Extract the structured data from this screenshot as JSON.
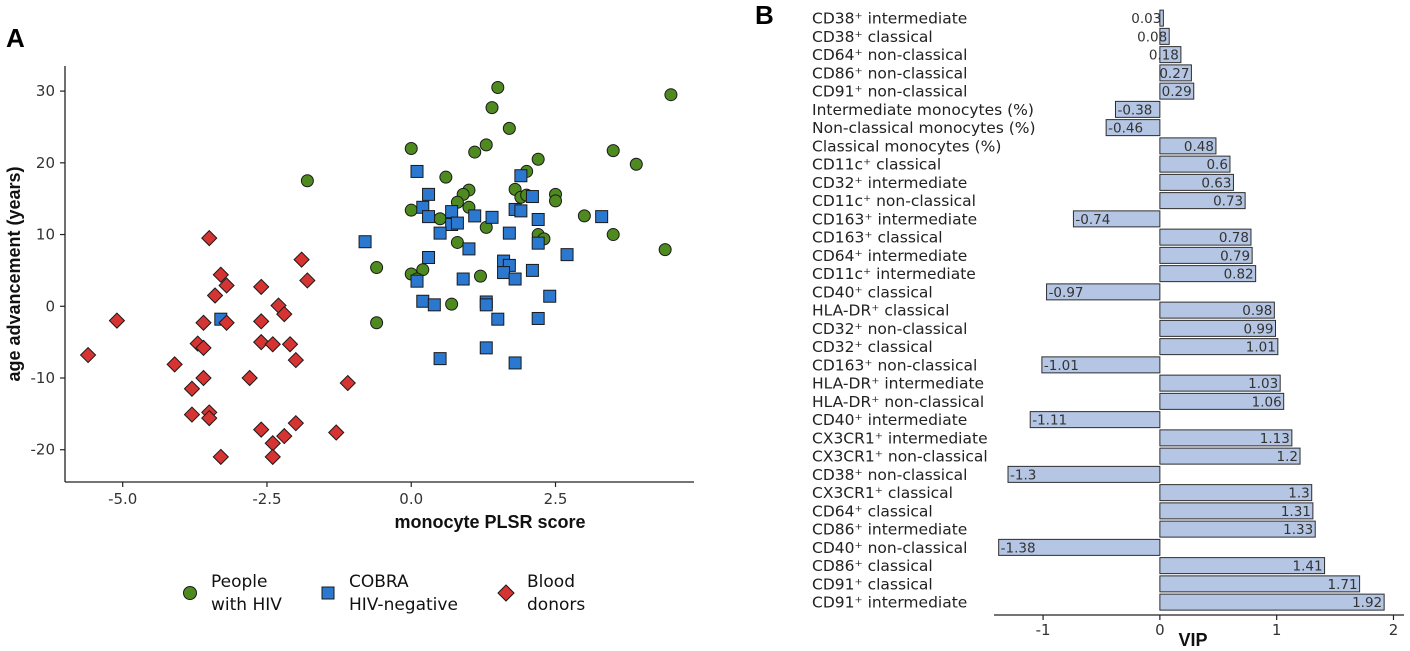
{
  "colors": {
    "hiv": "#4e8a1f",
    "cobra": "#2a78cf",
    "donor": "#d63333",
    "bar": "#b4c6e4"
  },
  "panel_labels": {
    "a": "A",
    "b": "B"
  },
  "legend": {
    "hiv_line1": "People",
    "hiv_line2": "with HIV",
    "cobra_line1": "COBRA",
    "cobra_line2": "HIV-negative",
    "donor_line1": "Blood",
    "donor_line2": "donors"
  },
  "chart_data": [
    {
      "type": "scatter",
      "xlabel": "monocyte PLSR score",
      "ylabel": "age advancement (years)",
      "xlim": [
        -6.0,
        4.9
      ],
      "ylim": [
        -24.5,
        33.5
      ],
      "xticks": [
        -5.0,
        -2.5,
        0.0,
        2.5
      ],
      "xtick_labels": [
        "-5.0",
        "-2.5",
        "0.0",
        "2.5"
      ],
      "yticks": [
        -20,
        -10,
        0,
        10,
        20,
        30
      ],
      "ytick_labels": [
        "-20",
        "-10",
        "0",
        "10",
        "20",
        "30"
      ],
      "series": [
        {
          "name": "People with HIV",
          "marker": "circle",
          "points": [
            [
              1.5,
              30.5
            ],
            [
              4.5,
              29.5
            ],
            [
              1.4,
              27.7
            ],
            [
              1.7,
              24.8
            ],
            [
              0.0,
              22
            ],
            [
              1.3,
              22.5
            ],
            [
              3.5,
              21.7
            ],
            [
              1.1,
              21.5
            ],
            [
              2.2,
              20.5
            ],
            [
              3.9,
              19.8
            ],
            [
              0.6,
              18
            ],
            [
              2.0,
              18.8
            ],
            [
              -1.8,
              17.5
            ],
            [
              1.8,
              16.3
            ],
            [
              1.0,
              16.2
            ],
            [
              0.9,
              15.6
            ],
            [
              1.9,
              15.2
            ],
            [
              2.0,
              15.5
            ],
            [
              0.8,
              14.5
            ],
            [
              2.5,
              15.6
            ],
            [
              2.5,
              14.7
            ],
            [
              1.0,
              13.8
            ],
            [
              0.0,
              13.4
            ],
            [
              3.0,
              12.6
            ],
            [
              0.5,
              12.2
            ],
            [
              1.3,
              11.0
            ],
            [
              2.2,
              10.0
            ],
            [
              2.3,
              9.4
            ],
            [
              0.8,
              8.9
            ],
            [
              3.5,
              10.0
            ],
            [
              4.4,
              7.9
            ],
            [
              -0.6,
              5.4
            ],
            [
              0.2,
              5.1
            ],
            [
              0.0,
              4.5
            ],
            [
              1.2,
              4.2
            ],
            [
              0.1,
              3.8
            ],
            [
              0.7,
              0.3
            ],
            [
              -0.6,
              -2.3
            ]
          ]
        },
        {
          "name": "COBRA HIV-negative",
          "marker": "square",
          "points": [
            [
              0.1,
              18.8
            ],
            [
              1.9,
              18.2
            ],
            [
              0.3,
              15.6
            ],
            [
              2.1,
              15.3
            ],
            [
              0.2,
              13.8
            ],
            [
              0.7,
              13.2
            ],
            [
              1.8,
              13.5
            ],
            [
              1.9,
              13.3
            ],
            [
              0.3,
              12.5
            ],
            [
              1.1,
              12.6
            ],
            [
              1.4,
              12.4
            ],
            [
              2.2,
              12.1
            ],
            [
              3.3,
              12.5
            ],
            [
              0.7,
              11.4
            ],
            [
              0.8,
              11.6
            ],
            [
              0.5,
              10.2
            ],
            [
              1.7,
              10.2
            ],
            [
              -0.8,
              9.0
            ],
            [
              2.2,
              8.8
            ],
            [
              1.0,
              8.0
            ],
            [
              0.3,
              6.8
            ],
            [
              2.7,
              7.2
            ],
            [
              1.6,
              6.3
            ],
            [
              1.7,
              5.7
            ],
            [
              1.6,
              4.7
            ],
            [
              2.1,
              5.0
            ],
            [
              0.1,
              3.5
            ],
            [
              0.9,
              3.8
            ],
            [
              1.8,
              3.8
            ],
            [
              2.4,
              1.4
            ],
            [
              0.2,
              0.7
            ],
            [
              1.3,
              0.6
            ],
            [
              1.3,
              0.2
            ],
            [
              0.4,
              0.2
            ],
            [
              1.5,
              -1.8
            ],
            [
              2.2,
              -1.7
            ],
            [
              -3.3,
              -1.8
            ],
            [
              1.3,
              -5.8
            ],
            [
              0.5,
              -7.3
            ],
            [
              1.8,
              -7.9
            ]
          ]
        },
        {
          "name": "Blood donors",
          "marker": "diamond",
          "points": [
            [
              -3.5,
              9.5
            ],
            [
              -1.9,
              6.5
            ],
            [
              -3.3,
              4.4
            ],
            [
              -3.2,
              2.9
            ],
            [
              -1.8,
              3.6
            ],
            [
              -2.6,
              2.7
            ],
            [
              -3.4,
              1.5
            ],
            [
              -2.3,
              0.1
            ],
            [
              -2.2,
              -1.1
            ],
            [
              -5.1,
              -2.0
            ],
            [
              -3.6,
              -2.3
            ],
            [
              -2.6,
              -2.1
            ],
            [
              -3.2,
              -2.3
            ],
            [
              -3.7,
              -5.2
            ],
            [
              -3.6,
              -5.8
            ],
            [
              -2.6,
              -5.0
            ],
            [
              -2.4,
              -5.3
            ],
            [
              -2.1,
              -5.3
            ],
            [
              -5.6,
              -6.8
            ],
            [
              -2.0,
              -7.5
            ],
            [
              -4.1,
              -8.1
            ],
            [
              -3.6,
              -10.0
            ],
            [
              -2.8,
              -10.0
            ],
            [
              -1.1,
              -10.7
            ],
            [
              -3.8,
              -11.5
            ],
            [
              -3.5,
              -14.8
            ],
            [
              -3.8,
              -15.1
            ],
            [
              -3.5,
              -15.6
            ],
            [
              -2.0,
              -16.3
            ],
            [
              -2.6,
              -17.2
            ],
            [
              -1.3,
              -17.6
            ],
            [
              -2.2,
              -18.1
            ],
            [
              -2.4,
              -19.1
            ],
            [
              -3.3,
              -21.0
            ],
            [
              -2.4,
              -21.0
            ]
          ]
        }
      ]
    },
    {
      "type": "bar",
      "orientation": "horizontal",
      "xlabel": "VIP",
      "xlim": [
        -1.42,
        2.09
      ],
      "xticks": [
        -1,
        0,
        1,
        2
      ],
      "xtick_labels": [
        "-1",
        "0",
        "1",
        "2"
      ],
      "categories": [
        "CD38⁺ intermediate",
        "CD38⁺ classical",
        "CD64⁺ non-classical",
        "CD86⁺ non-classical",
        "CD91⁺ non-classical",
        "Intermediate monocytes (%)",
        "Non-classical monocytes (%)",
        "Classical monocytes (%)",
        "CD11c⁺ classical",
        "CD32⁺ intermediate",
        "CD11c⁺ non-classical",
        "CD163⁺ intermediate",
        "CD163⁺ classical",
        "CD64⁺ intermediate",
        "CD11c⁺ intermediate",
        "CD40⁺ classical",
        "HLA-DR⁺ classical",
        "CD32⁺ non-classical",
        "CD32⁺ classical",
        "CD163⁺ non-classical",
        "HLA-DR⁺ intermediate",
        "HLA-DR⁺ non-classical",
        "CD40⁺ intermediate",
        "CX3CR1⁺ intermediate",
        "CX3CR1⁺ non-classical",
        "CD38⁺ non-classical",
        "CX3CR1⁺ classical",
        "CD64⁺ classical",
        "CD86⁺ intermediate",
        "CD40⁺ non-classical",
        "CD86⁺ classical",
        "CD91⁺ classical",
        "CD91⁺ intermediate"
      ],
      "values": [
        0.03,
        0.08,
        0.18,
        0.27,
        0.29,
        -0.38,
        -0.46,
        0.48,
        0.6,
        0.63,
        0.73,
        -0.74,
        0.78,
        0.79,
        0.82,
        -0.97,
        0.98,
        0.99,
        1.01,
        -1.01,
        1.03,
        1.06,
        -1.11,
        1.13,
        1.2,
        -1.3,
        1.3,
        1.31,
        1.33,
        -1.38,
        1.41,
        1.71,
        1.92
      ],
      "value_labels": [
        "0.03",
        "0.08",
        "0.18",
        "0.27",
        "0.29",
        "-0.38",
        "-0.46",
        "0.48",
        "0.6",
        "0.63",
        "0.73",
        "-0.74",
        "0.78",
        "0.79",
        "0.82",
        "-0.97",
        "0.98",
        "0.99",
        "1.01",
        "-1.01",
        "1.03",
        "1.06",
        "-1.11",
        "1.13",
        "1.2",
        "-1.3",
        "1.3",
        "1.31",
        "1.33",
        "-1.38",
        "1.41",
        "1.71",
        "1.92"
      ]
    }
  ]
}
